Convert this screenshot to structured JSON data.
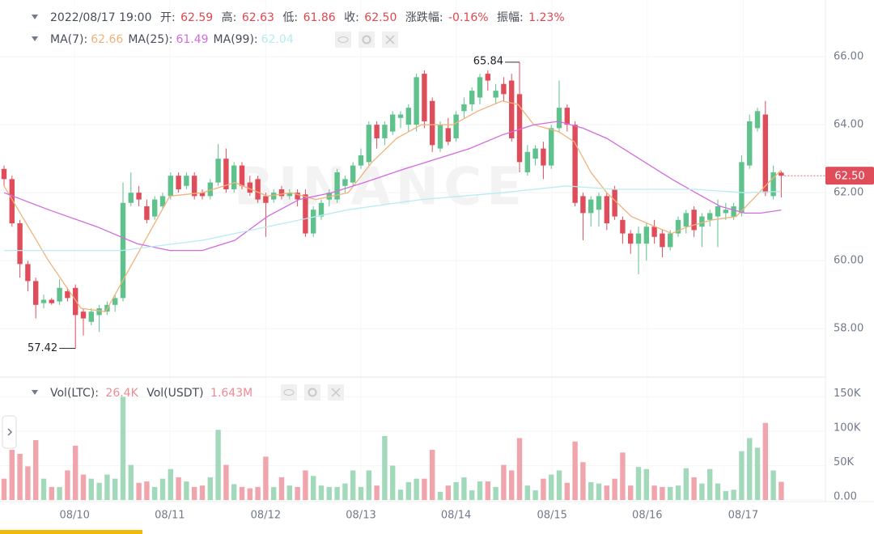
{
  "header": {
    "datetime": "2022/08/17 19:00",
    "open_label": "开:",
    "open": "62.59",
    "high_label": "高:",
    "high": "62.63",
    "low_label": "低:",
    "low": "61.86",
    "close_label": "收:",
    "close": "62.50",
    "change_label": "涨跌幅:",
    "change": "-0.16%",
    "amplitude_label": "振幅:",
    "amplitude": "1.23%",
    "vol_legend": [
      {
        "name": "Vol(LTC):",
        "value": "26.4K"
      },
      {
        "name": "Vol(USDT)",
        "value": "1.643M"
      }
    ]
  },
  "chart_data": {
    "type": "candlestick",
    "watermark": "BINANCE",
    "up_color": "#5fc28d",
    "down_color": "#e04d5a",
    "up_volume_color": "#a3d9bb",
    "down_volume_color": "#f0a5ac",
    "xlim": [
      -0.51,
      103.57
    ],
    "xticks": [
      {
        "value": 8.9,
        "label": "08/10"
      },
      {
        "value": 20.9,
        "label": "08/11"
      },
      {
        "value": 33.0,
        "label": "08/12"
      },
      {
        "value": 45.0,
        "label": "08/13"
      },
      {
        "value": 57.0,
        "label": "08/14"
      },
      {
        "value": 69.1,
        "label": "08/15"
      },
      {
        "value": 81.1,
        "label": "08/16"
      },
      {
        "value": 93.2,
        "label": "08/17"
      }
    ],
    "ylim": [
      56.6,
      67.67
    ],
    "yticks": [
      {
        "value": 58,
        "label": "58.00"
      },
      {
        "value": 60,
        "label": "60.00"
      },
      {
        "value": 62,
        "label": "62.00"
      },
      {
        "value": 64,
        "label": "64.00"
      },
      {
        "value": 66,
        "label": "66.00"
      }
    ],
    "vol_ylim": [
      0,
      174000
    ],
    "vol_yticks": [
      {
        "value": 0,
        "label": "0.00"
      },
      {
        "value": 50000,
        "label": "50K"
      },
      {
        "value": 100000,
        "label": "100K"
      },
      {
        "value": 150000,
        "label": "150K"
      }
    ],
    "last_price": {
      "value": 62.5,
      "label": "62.50"
    },
    "open": [
      62.7,
      62.4,
      61.1,
      59.9,
      59.4,
      58.75,
      58.85,
      58.8,
      59.1,
      59.2,
      58.5,
      58.2,
      58.4,
      58.5,
      58.7,
      58.9,
      61.7,
      62.0,
      61.6,
      61.3,
      61.6,
      61.9,
      62.5,
      62.2,
      62.5,
      62.0,
      61.9,
      62.3,
      63.0,
      62.1,
      62.8,
      62.3,
      62.4,
      61.9,
      61.8,
      62.1,
      61.9,
      62.0,
      61.95,
      60.8,
      61.3,
      61.8,
      61.8,
      62.2,
      62.3,
      62.8,
      62.9,
      64.0,
      63.6,
      63.8,
      64.2,
      64.0,
      64.0,
      65.5,
      64.7,
      63.3,
      63.9,
      63.6,
      64.4,
      64.6,
      64.8,
      65.5,
      64.8,
      65.2,
      65.3,
      64.9,
      62.6,
      63.0,
      63.3,
      62.8,
      63.9,
      64.5,
      64.0,
      61.9,
      61.4,
      61.5,
      61.9,
      62.1,
      61.2,
      60.8,
      60.5,
      60.5,
      61.0,
      60.8,
      60.4,
      60.8,
      61.0,
      61.5,
      61.0,
      61.2,
      61.3,
      61.4,
      61.3,
      61.4,
      62.8,
      63.9,
      64.3,
      61.9,
      62.59
    ],
    "high": [
      62.8,
      62.5,
      61.2,
      60.0,
      59.5,
      59.0,
      58.9,
      59.45,
      59.2,
      59.3,
      58.6,
      58.6,
      58.7,
      58.8,
      59.0,
      62.3,
      62.6,
      62.2,
      61.8,
      61.9,
      62.0,
      62.6,
      62.6,
      62.6,
      62.6,
      62.1,
      62.4,
      63.43,
      63.3,
      62.9,
      62.9,
      62.5,
      62.5,
      62.0,
      62.1,
      62.2,
      62.1,
      62.1,
      62.1,
      61.6,
      61.8,
      62.1,
      62.7,
      62.5,
      62.9,
      63.3,
      64.1,
      64.1,
      64.1,
      64.4,
      64.4,
      64.6,
      65.5,
      65.6,
      64.8,
      64.1,
      64.2,
      64.4,
      64.8,
      65.1,
      65.5,
      65.6,
      65.2,
      65.4,
      65.5,
      65.84,
      63.4,
      63.4,
      63.5,
      64.0,
      65.3,
      64.6,
      64.1,
      62.0,
      61.9,
      62.0,
      62.0,
      62.2,
      61.3,
      60.9,
      61.0,
      61.1,
      61.2,
      60.9,
      60.9,
      61.3,
      61.5,
      61.6,
      61.4,
      61.5,
      61.8,
      61.7,
      61.7,
      63.1,
      64.3,
      64.5,
      64.7,
      62.8,
      62.63
    ],
    "low": [
      62.2,
      61.0,
      59.5,
      59.1,
      58.3,
      58.6,
      58.7,
      58.7,
      58.8,
      57.42,
      57.8,
      58.1,
      57.9,
      58.4,
      58.5,
      58.8,
      61.6,
      61.6,
      61.1,
      61.2,
      61.5,
      61.8,
      62.0,
      62.1,
      61.8,
      61.8,
      61.8,
      62.2,
      62.0,
      62.0,
      62.1,
      61.9,
      61.7,
      60.7,
      61.7,
      61.8,
      61.8,
      61.6,
      60.7,
      60.7,
      61.2,
      61.6,
      61.7,
      62.0,
      62.2,
      62.7,
      62.8,
      63.3,
      63.4,
      63.7,
      63.9,
      63.8,
      63.8,
      63.9,
      63.2,
      63.2,
      63.4,
      63.5,
      64.2,
      64.4,
      64.6,
      65.0,
      64.6,
      64.7,
      63.5,
      62.6,
      62.5,
      62.8,
      62.4,
      62.7,
      63.8,
      63.8,
      61.6,
      60.6,
      61.0,
      61.0,
      60.9,
      61.2,
      60.5,
      60.2,
      59.6,
      60.0,
      60.5,
      60.1,
      60.3,
      60.7,
      60.8,
      60.7,
      60.4,
      61.0,
      60.4,
      61.2,
      61.2,
      61.3,
      62.7,
      63.8,
      61.9,
      61.8,
      61.86
    ],
    "close": [
      62.4,
      61.1,
      59.9,
      59.4,
      58.7,
      58.85,
      58.75,
      59.2,
      58.9,
      58.4,
      58.3,
      58.5,
      58.6,
      58.7,
      58.9,
      61.7,
      62.0,
      61.8,
      61.2,
      61.8,
      61.9,
      62.5,
      62.1,
      62.5,
      61.9,
      61.9,
      62.3,
      63.0,
      62.1,
      62.8,
      62.2,
      62.0,
      61.8,
      61.7,
      62.0,
      61.9,
      62.0,
      61.8,
      60.8,
      61.5,
      61.7,
      62.0,
      62.6,
      62.4,
      62.8,
      63.1,
      64.0,
      63.6,
      64.0,
      64.3,
      64.3,
      64.5,
      65.4,
      64.1,
      63.4,
      64.0,
      63.5,
      64.3,
      64.6,
      65.0,
      65.4,
      65.3,
      65.0,
      64.9,
      63.6,
      62.9,
      63.2,
      63.3,
      62.8,
      63.9,
      64.5,
      64.0,
      61.7,
      61.4,
      61.8,
      61.9,
      61.1,
      61.3,
      60.8,
      60.5,
      60.8,
      61.0,
      60.7,
      60.4,
      60.8,
      61.2,
      61.4,
      60.9,
      61.3,
      61.4,
      61.6,
      61.5,
      61.6,
      62.9,
      64.1,
      64.4,
      62.0,
      62.6,
      62.5
    ],
    "volume": [
      31000,
      73000,
      67000,
      49000,
      87000,
      31000,
      19000,
      19000,
      43000,
      79000,
      37000,
      31000,
      25000,
      37000,
      31000,
      150000,
      51000,
      25000,
      27000,
      19000,
      31000,
      45000,
      33000,
      27000,
      19000,
      21000,
      33000,
      102000,
      51000,
      23000,
      19000,
      17000,
      19000,
      63000,
      19000,
      33000,
      21000,
      19000,
      43000,
      35000,
      21000,
      19000,
      19000,
      24000,
      43000,
      19000,
      43000,
      21000,
      93000,
      50000,
      15000,
      26000,
      31000,
      31000,
      73000,
      12000,
      21000,
      26000,
      33000,
      14000,
      27000,
      27000,
      19000,
      51000,
      43000,
      90000,
      21000,
      14000,
      31000,
      37000,
      43000,
      25000,
      85000,
      55000,
      26000,
      24000,
      21000,
      31000,
      69000,
      21000,
      48000,
      45000,
      21000,
      19000,
      19000,
      21000,
      46000,
      33000,
      24000,
      45000,
      24000,
      13000,
      15000,
      71000,
      90000,
      76000,
      112000,
      43000,
      26400
    ],
    "ma": [
      {
        "name": "MA(7):",
        "legend_value": "62.66",
        "color": "#f0b27a",
        "x": [
          0,
          5.6,
          9.7,
          12.8,
          20.9,
          25,
          29.1,
          33.2,
          36.2,
          39.3,
          43.4,
          46.4,
          49.5,
          52.6,
          56.6,
          59.7,
          62.8,
          64.8,
          66.8,
          69.9,
          71.9,
          74,
          76,
          79.1,
          82.1,
          84.2,
          86.2,
          89.3,
          92.3,
          94.4,
          96.4,
          98
        ],
        "values": [
          62.2,
          60.0,
          58.6,
          58.5,
          61.9,
          62.0,
          62.3,
          61.9,
          62.0,
          61.8,
          62.0,
          62.9,
          63.6,
          64.0,
          64.0,
          64.4,
          64.7,
          64.6,
          64.0,
          63.8,
          63.5,
          62.6,
          62.0,
          61.3,
          61.0,
          60.8,
          61.0,
          61.2,
          61.3,
          61.8,
          62.3,
          62.66
        ]
      },
      {
        "name": "MA(25):",
        "legend_value": "61.49",
        "color": "#d46ae0",
        "x": [
          0,
          5.6,
          11.7,
          16.8,
          20.9,
          25,
          29.1,
          33.2,
          37.2,
          41.3,
          45.4,
          50.5,
          54.6,
          58.7,
          62.8,
          66.8,
          69.9,
          73,
          76,
          80.1,
          84.2,
          87.2,
          90.3,
          93.4,
          95.4,
          98
        ],
        "values": [
          62.0,
          61.5,
          61.0,
          60.5,
          60.3,
          60.3,
          60.6,
          61.3,
          61.8,
          62.0,
          62.3,
          62.7,
          63.0,
          63.3,
          63.7,
          64.0,
          64.1,
          63.9,
          63.6,
          63.0,
          62.4,
          62.0,
          61.6,
          61.4,
          61.4,
          61.49
        ]
      },
      {
        "name": "MA(99):",
        "legend_value": "62.04",
        "color": "#b6ecf2",
        "x": [
          0,
          14.8,
          25,
          33.2,
          43.4,
          52.6,
          62.8,
          70.9,
          77,
          87.2,
          93.4,
          98
        ],
        "values": [
          60.3,
          60.3,
          60.6,
          61.0,
          61.5,
          61.8,
          62.0,
          62.2,
          62.1,
          62.1,
          62.0,
          62.04
        ]
      }
    ]
  }
}
